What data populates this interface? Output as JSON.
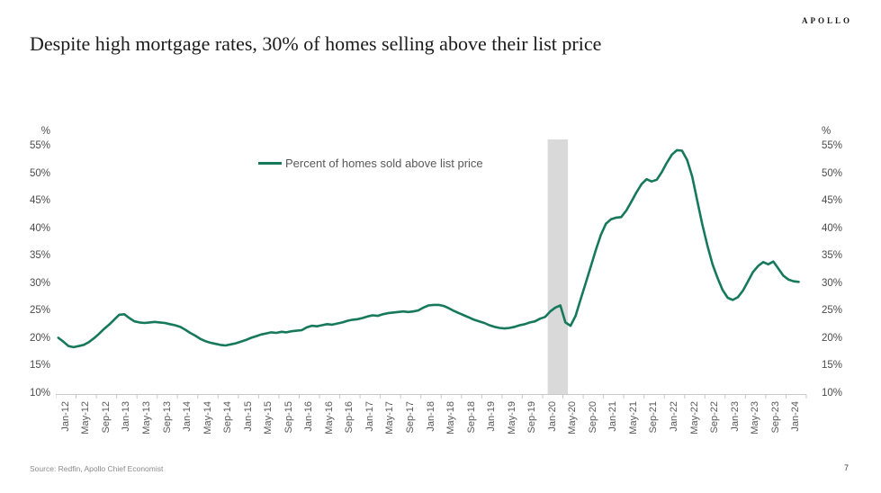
{
  "page": {
    "page_number": "7"
  },
  "brand": {
    "logo_text": "APOLLO"
  },
  "header": {
    "title": "Despite high mortgage rates, 30% of homes selling above their list price"
  },
  "footer": {
    "source": "Source: Redfin, Apollo Chief Economist"
  },
  "chart_data": {
    "type": "line",
    "title": "Percent of homes sold above list price",
    "axis_unit_label": "%",
    "ylim": [
      10,
      55
    ],
    "grid": "off",
    "legend": {
      "label": "Percent of homes sold above list price",
      "position": "top-center"
    },
    "y_tick_labels": [
      "55%",
      "50%",
      "45%",
      "40%",
      "35%",
      "30%",
      "25%",
      "20%",
      "15%",
      "10%"
    ],
    "x_tick_labels": [
      "Jan-12",
      "May-12",
      "Sep-12",
      "Jan-13",
      "May-13",
      "Sep-13",
      "Jan-14",
      "May-14",
      "Sep-14",
      "Jan-15",
      "May-15",
      "Sep-15",
      "Jan-16",
      "May-16",
      "Sep-16",
      "Jan-17",
      "May-17",
      "Sep-17",
      "Jan-18",
      "May-18",
      "Sep-18",
      "Jan-19",
      "May-19",
      "Sep-19",
      "Jan-20",
      "May-20",
      "Sep-20",
      "Jan-21",
      "May-21",
      "Sep-21",
      "Jan-22",
      "May-22",
      "Sep-22",
      "Jan-23",
      "May-23",
      "Sep-23",
      "Jan-24"
    ],
    "start_month": "Jan-2012",
    "frequency": "monthly",
    "recession_band": {
      "from": "Feb-2020",
      "to": "May-2020",
      "color": "#d9d9d9"
    },
    "series": [
      {
        "name": "Percent of homes sold above list price",
        "color": "#17795B",
        "values": [
          20.0,
          19.3,
          18.5,
          18.3,
          18.5,
          18.7,
          19.2,
          19.9,
          20.7,
          21.6,
          22.4,
          23.3,
          24.2,
          24.3,
          23.6,
          23.0,
          22.8,
          22.7,
          22.8,
          22.9,
          22.8,
          22.7,
          22.5,
          22.3,
          22.0,
          21.5,
          20.9,
          20.4,
          19.8,
          19.4,
          19.1,
          18.9,
          18.7,
          18.6,
          18.8,
          19.0,
          19.3,
          19.6,
          20.0,
          20.3,
          20.6,
          20.8,
          21.0,
          20.9,
          21.1,
          21.0,
          21.2,
          21.3,
          21.4,
          21.9,
          22.2,
          22.1,
          22.3,
          22.5,
          22.4,
          22.6,
          22.8,
          23.1,
          23.3,
          23.4,
          23.6,
          23.9,
          24.1,
          24.0,
          24.3,
          24.5,
          24.6,
          24.7,
          24.8,
          24.7,
          24.8,
          25.0,
          25.5,
          25.9,
          26.0,
          26.0,
          25.8,
          25.4,
          24.9,
          24.5,
          24.1,
          23.7,
          23.3,
          23.0,
          22.7,
          22.3,
          22.0,
          21.8,
          21.7,
          21.8,
          22.0,
          22.3,
          22.5,
          22.8,
          23.0,
          23.5,
          23.8,
          24.8,
          25.5,
          25.9,
          22.8,
          22.2,
          24.0,
          27.0,
          30.0,
          33.0,
          36.0,
          38.8,
          40.8,
          41.6,
          41.9,
          42.0,
          43.2,
          44.8,
          46.5,
          48.0,
          48.9,
          48.5,
          48.8,
          50.2,
          51.9,
          53.4,
          54.2,
          54.1,
          52.4,
          49.4,
          45.0,
          40.6,
          36.8,
          33.4,
          30.9,
          28.7,
          27.3,
          26.9,
          27.4,
          28.6,
          30.3,
          32.0,
          33.1,
          33.8,
          33.4,
          33.9,
          32.6,
          31.3,
          30.6,
          30.3,
          30.2
        ]
      }
    ]
  }
}
